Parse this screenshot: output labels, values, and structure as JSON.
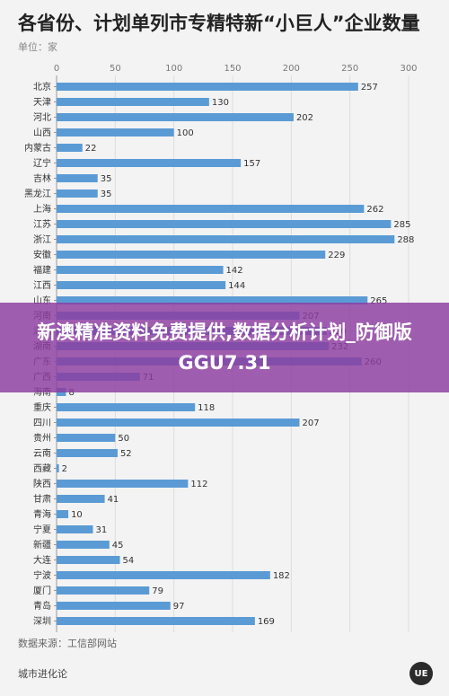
{
  "header": {
    "title": "各省份、计划单列市专精特新“小巨人”企业数量",
    "unit": "单位：家"
  },
  "banner": {
    "text": "新澳精准资料免费提供,数据分析计划_防御版GGU7.31"
  },
  "footer": {
    "source": "数据来源：工信部网站",
    "brand": "城市进化论"
  },
  "colors": {
    "bar": "#5b9bd5",
    "banner": "#8c3ca0"
  },
  "chart_data": {
    "type": "bar",
    "orientation": "horizontal",
    "title": "各省份、计划单列市专精特新“小巨人”企业数量",
    "xlabel": "",
    "ylabel": "",
    "xlim": [
      0,
      300
    ],
    "x_ticks": [
      "0",
      "50",
      "100",
      "150",
      "200",
      "250",
      "300"
    ],
    "x_axis_position": "top",
    "grid": true,
    "categories": [
      "北京",
      "天津",
      "河北",
      "山西",
      "内蒙古",
      "辽宁",
      "吉林",
      "黑龙江",
      "上海",
      "江苏",
      "浙江",
      "安徽",
      "福建",
      "江西",
      "山东",
      "河南",
      "湖北",
      "湖南",
      "广东",
      "广西",
      "海南",
      "重庆",
      "四川",
      "贵州",
      "云南",
      "西藏",
      "陕西",
      "甘肃",
      "青海",
      "宁夏",
      "新疆",
      "大连",
      "宁波",
      "厦门",
      "青岛",
      "深圳"
    ],
    "values": [
      257,
      130,
      202,
      100,
      22,
      157,
      35,
      35,
      262,
      285,
      288,
      229,
      142,
      144,
      265,
      207,
      230,
      232,
      260,
      71,
      8,
      118,
      207,
      50,
      52,
      2,
      112,
      41,
      10,
      31,
      45,
      54,
      182,
      79,
      97,
      169
    ],
    "data_labels": [
      "257",
      "130",
      "202",
      "100",
      "22",
      "157",
      "35",
      "35",
      "262",
      "285",
      "288",
      "229",
      "142",
      "144",
      "265",
      "207",
      "230",
      "232",
      "260",
      "71",
      "8",
      "118",
      "207",
      "50",
      "52",
      "2",
      "112",
      "41",
      "10",
      "31",
      "45",
      "54",
      "182",
      "79",
      "97",
      "169"
    ]
  }
}
